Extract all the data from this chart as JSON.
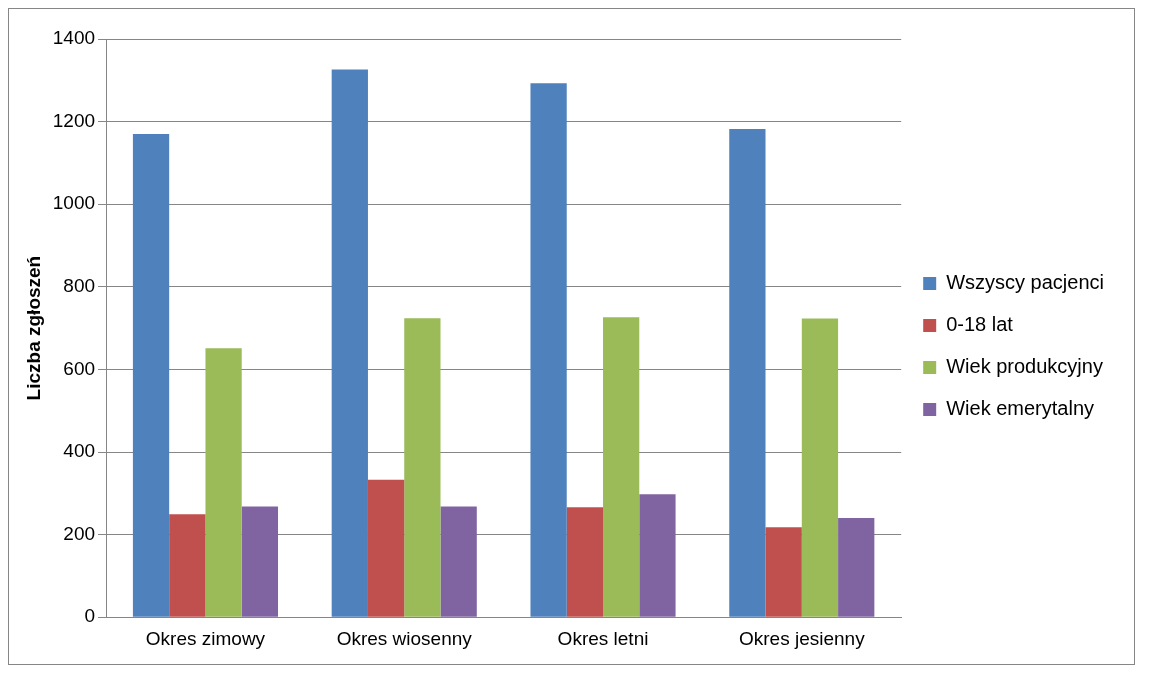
{
  "chart_data": {
    "type": "bar",
    "ylabel": "Liczba zgłoszeń",
    "categories": [
      "Okres zimowy",
      "Okres wiosenny",
      "Okres letni",
      "Okres jesienny"
    ],
    "series": [
      {
        "name": "Wszyscy pacjenci",
        "color": "#4f81bd",
        "values": [
          1170,
          1326,
          1293,
          1182
        ]
      },
      {
        "name": "0-18 lat",
        "color": "#c0504d",
        "values": [
          249,
          333,
          266,
          218
        ]
      },
      {
        "name": "Wiek produkcyjny",
        "color": "#9bbb59",
        "values": [
          651,
          724,
          726,
          723
        ]
      },
      {
        "name": "Wiek emerytalny",
        "color": "#8064a2",
        "values": [
          268,
          268,
          298,
          240
        ]
      }
    ],
    "ylim": [
      0,
      1400
    ],
    "yticks": [
      0,
      200,
      400,
      600,
      800,
      1000,
      1200,
      1400
    ],
    "grid": "y",
    "legend": "right"
  }
}
